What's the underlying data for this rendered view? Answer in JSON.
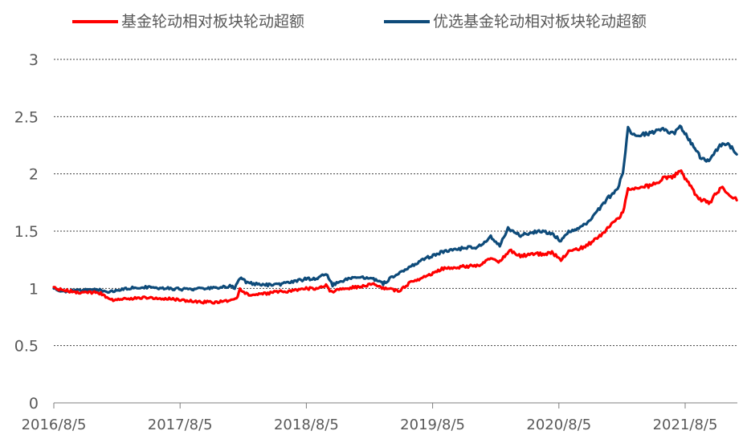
{
  "chart_data": {
    "type": "line",
    "title": "",
    "xlabel": "",
    "ylabel": "",
    "ylim": [
      0,
      3
    ],
    "y_ticks": [
      "0",
      "0.5",
      "1",
      "1.5",
      "2",
      "2.5",
      "3"
    ],
    "x_tick_labels": [
      "2016/8/5",
      "2017/8/5",
      "2018/8/5",
      "2019/8/5",
      "2020/8/5",
      "2021/8/5"
    ],
    "x_range": [
      "2016-08-05",
      "2021-12-31"
    ],
    "grid": true,
    "legend_position": "top",
    "series": [
      {
        "name": "基金轮动相对板块轮动超额",
        "color": "#ff0000",
        "points": [
          [
            "2016-08-05",
            1.0
          ],
          [
            "2016-10-01",
            0.97
          ],
          [
            "2016-12-15",
            0.96
          ],
          [
            "2017-01-20",
            0.9
          ],
          [
            "2017-03-01",
            0.91
          ],
          [
            "2017-05-01",
            0.92
          ],
          [
            "2017-07-01",
            0.91
          ],
          [
            "2017-09-01",
            0.89
          ],
          [
            "2017-10-15",
            0.88
          ],
          [
            "2017-11-15",
            0.88
          ],
          [
            "2017-12-31",
            0.9
          ],
          [
            "2018-01-15",
            0.91
          ],
          [
            "2018-01-25",
            0.99
          ],
          [
            "2018-02-20",
            0.94
          ],
          [
            "2018-04-01",
            0.95
          ],
          [
            "2018-05-15",
            0.97
          ],
          [
            "2018-06-15",
            0.97
          ],
          [
            "2018-08-01",
            1.0
          ],
          [
            "2018-09-10",
            1.0
          ],
          [
            "2018-10-01",
            1.03
          ],
          [
            "2018-10-15",
            0.97
          ],
          [
            "2018-11-15",
            1.0
          ],
          [
            "2019-01-01",
            1.01
          ],
          [
            "2019-02-15",
            1.04
          ],
          [
            "2019-03-15",
            1.0
          ],
          [
            "2019-05-01",
            0.98
          ],
          [
            "2019-06-01",
            1.05
          ],
          [
            "2019-07-15",
            1.1
          ],
          [
            "2019-09-01",
            1.17
          ],
          [
            "2019-11-01",
            1.19
          ],
          [
            "2019-12-15",
            1.2
          ],
          [
            "2020-01-20",
            1.27
          ],
          [
            "2020-02-15",
            1.23
          ],
          [
            "2020-03-15",
            1.33
          ],
          [
            "2020-04-15",
            1.28
          ],
          [
            "2020-05-15",
            1.3
          ],
          [
            "2020-06-15",
            1.3
          ],
          [
            "2020-07-15",
            1.31
          ],
          [
            "2020-08-10",
            1.25
          ],
          [
            "2020-09-01",
            1.32
          ],
          [
            "2020-10-15",
            1.36
          ],
          [
            "2020-11-15",
            1.42
          ],
          [
            "2020-12-15",
            1.5
          ],
          [
            "2021-01-10",
            1.58
          ],
          [
            "2021-01-25",
            1.62
          ],
          [
            "2021-02-05",
            1.67
          ],
          [
            "2021-02-20",
            1.86
          ],
          [
            "2021-03-05",
            1.88
          ],
          [
            "2021-03-25",
            1.88
          ],
          [
            "2021-05-01",
            1.9
          ],
          [
            "2021-06-01",
            1.96
          ],
          [
            "2021-07-01",
            1.98
          ],
          [
            "2021-07-20",
            2.03
          ],
          [
            "2021-08-10",
            1.94
          ],
          [
            "2021-09-01",
            1.83
          ],
          [
            "2021-09-20",
            1.77
          ],
          [
            "2021-10-15",
            1.75
          ],
          [
            "2021-11-01",
            1.83
          ],
          [
            "2021-11-20",
            1.88
          ],
          [
            "2021-12-10",
            1.82
          ],
          [
            "2021-12-31",
            1.77
          ]
        ]
      },
      {
        "name": "优选基金轮动相对板块轮动超额",
        "color": "#0e4b7a",
        "points": [
          [
            "2016-08-05",
            1.0
          ],
          [
            "2016-09-01",
            0.97
          ],
          [
            "2016-10-01",
            0.98
          ],
          [
            "2016-12-01",
            0.99
          ],
          [
            "2017-01-20",
            0.97
          ],
          [
            "2017-03-01",
            1.0
          ],
          [
            "2017-05-01",
            1.01
          ],
          [
            "2017-07-01",
            1.0
          ],
          [
            "2017-09-01",
            0.99
          ],
          [
            "2017-10-15",
            1.0
          ],
          [
            "2017-12-01",
            1.01
          ],
          [
            "2017-12-31",
            1.02
          ],
          [
            "2018-01-10",
            1.0
          ],
          [
            "2018-01-25",
            1.09
          ],
          [
            "2018-02-15",
            1.05
          ],
          [
            "2018-04-01",
            1.03
          ],
          [
            "2018-05-15",
            1.03
          ],
          [
            "2018-07-01",
            1.06
          ],
          [
            "2018-08-01",
            1.08
          ],
          [
            "2018-09-10",
            1.09
          ],
          [
            "2018-10-01",
            1.13
          ],
          [
            "2018-10-20",
            1.03
          ],
          [
            "2018-12-01",
            1.08
          ],
          [
            "2019-01-15",
            1.1
          ],
          [
            "2019-02-15",
            1.08
          ],
          [
            "2019-03-15",
            1.04
          ],
          [
            "2019-04-10",
            1.1
          ],
          [
            "2019-06-01",
            1.19
          ],
          [
            "2019-07-15",
            1.26
          ],
          [
            "2019-09-01",
            1.32
          ],
          [
            "2019-11-01",
            1.35
          ],
          [
            "2019-12-15",
            1.36
          ],
          [
            "2020-01-20",
            1.45
          ],
          [
            "2020-02-15",
            1.38
          ],
          [
            "2020-03-10",
            1.52
          ],
          [
            "2020-04-15",
            1.46
          ],
          [
            "2020-05-15",
            1.49
          ],
          [
            "2020-06-15",
            1.5
          ],
          [
            "2020-07-15",
            1.48
          ],
          [
            "2020-08-10",
            1.41
          ],
          [
            "2020-09-01",
            1.49
          ],
          [
            "2020-10-15",
            1.55
          ],
          [
            "2020-11-15",
            1.64
          ],
          [
            "2020-12-15",
            1.76
          ],
          [
            "2021-01-10",
            1.84
          ],
          [
            "2021-01-25",
            1.9
          ],
          [
            "2021-02-05",
            2.02
          ],
          [
            "2021-02-20",
            2.4
          ],
          [
            "2021-03-05",
            2.35
          ],
          [
            "2021-03-25",
            2.34
          ],
          [
            "2021-05-01",
            2.36
          ],
          [
            "2021-06-01",
            2.39
          ],
          [
            "2021-07-01",
            2.35
          ],
          [
            "2021-07-20",
            2.43
          ],
          [
            "2021-08-10",
            2.32
          ],
          [
            "2021-09-01",
            2.22
          ],
          [
            "2021-09-20",
            2.13
          ],
          [
            "2021-10-15",
            2.12
          ],
          [
            "2021-11-01",
            2.2
          ],
          [
            "2021-11-20",
            2.27
          ],
          [
            "2021-12-10",
            2.25
          ],
          [
            "2021-12-31",
            2.17
          ]
        ]
      }
    ]
  }
}
